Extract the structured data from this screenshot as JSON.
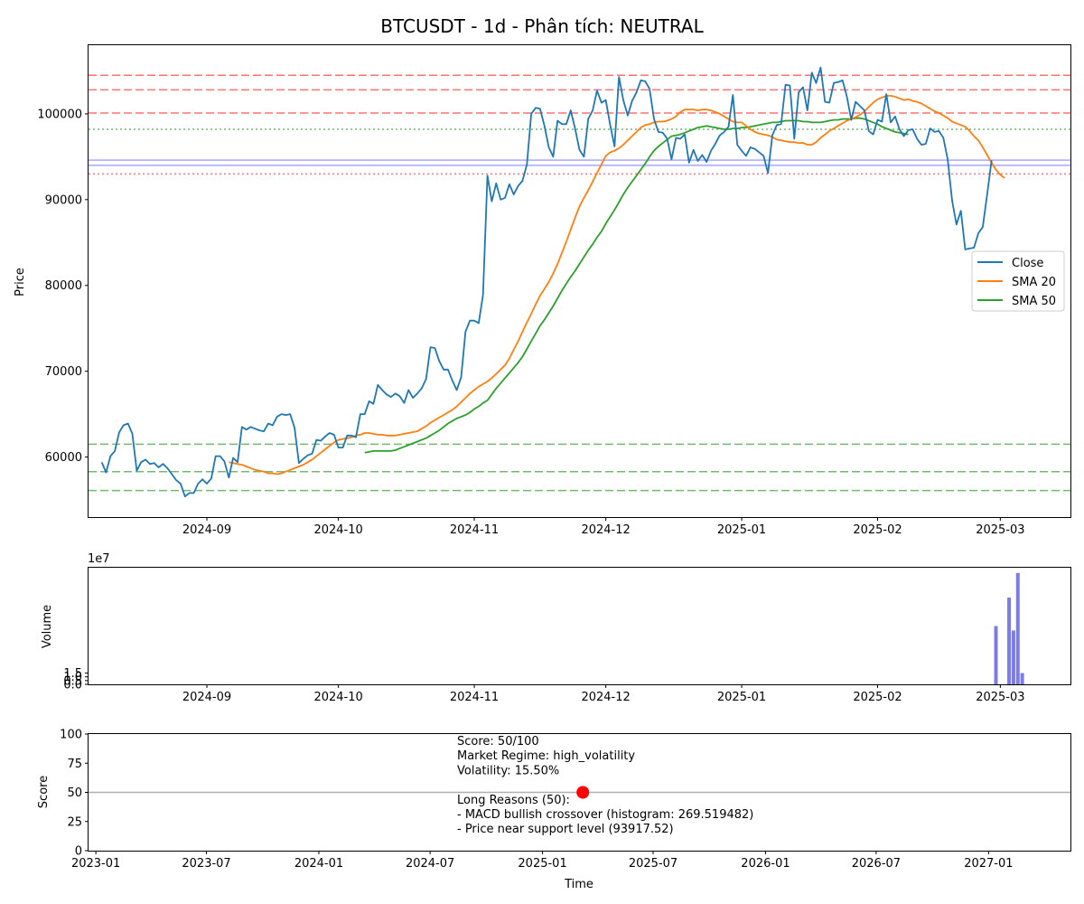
{
  "chart_data": [
    {
      "type": "line",
      "title": "BTCUSDT - 1d - Phân tích: NEUTRAL",
      "xlabel": "",
      "ylabel": "Price",
      "ylim": [
        53000,
        108000
      ],
      "x_range": [
        "2024-08-05",
        "2025-03-17"
      ],
      "x_ticks": [
        "2024-09",
        "2024-10",
        "2024-11",
        "2024-12",
        "2025-01",
        "2025-02",
        "2025-03"
      ],
      "y_ticks": [
        60000,
        70000,
        80000,
        90000,
        100000
      ],
      "y_tick_labels": [
        "60000",
        "70000",
        "80000",
        "90000",
        "100000"
      ],
      "legend": {
        "placement": "center-right",
        "entries": [
          "Close",
          "SMA 20",
          "SMA 50"
        ]
      },
      "colors": {
        "close": "#1f77b4",
        "sma20": "#ff7f0e",
        "sma50": "#2ca02c"
      },
      "series": [
        {
          "name": "Close",
          "start_date": "2024-08-08",
          "values": [
            59400,
            58200,
            60100,
            60700,
            62900,
            63700,
            63900,
            62700,
            58400,
            59400,
            59700,
            59200,
            59300,
            58800,
            59200,
            58700,
            58000,
            57300,
            56900,
            55400,
            55800,
            55800,
            56900,
            57400,
            56900,
            57500,
            60100,
            60100,
            59500,
            57600,
            59900,
            59400,
            63500,
            63200,
            63500,
            63300,
            63100,
            63000,
            63900,
            63700,
            64700,
            65000,
            64900,
            65000,
            63400,
            59300,
            59800,
            60200,
            60400,
            62000,
            61900,
            62400,
            62800,
            62600,
            61100,
            61100,
            62500,
            62500,
            62300,
            65000,
            65000,
            66500,
            66200,
            68400,
            67800,
            67300,
            67000,
            67400,
            67100,
            66300,
            67800,
            66900,
            67400,
            68000,
            69100,
            72800,
            72700,
            71200,
            70200,
            70200,
            68900,
            67800,
            69300,
            74600,
            75900,
            75900,
            75600,
            78900,
            92800,
            89800,
            91900,
            90000,
            90200,
            91800,
            90600,
            91600,
            92200,
            94100,
            100000,
            100700,
            100600,
            98600,
            96100,
            95000,
            99200,
            98800,
            98800,
            100400,
            98300,
            95800,
            95000,
            99400,
            100400,
            102700,
            101300,
            101600,
            98700,
            96200,
            104300,
            101600,
            99800,
            101500,
            102500,
            103900,
            103800,
            102900,
            99400,
            97900,
            97800,
            97100,
            94700,
            97200,
            97100,
            97600,
            94300,
            95800,
            94500,
            95200,
            94400,
            95700,
            96500,
            97500,
            97900,
            98500,
            102200,
            96400,
            95700,
            95100,
            96100,
            95900,
            95500,
            95100,
            93100,
            97500,
            98700,
            98800,
            103400,
            103300,
            97100,
            102500,
            103100,
            100400,
            104800,
            103600,
            105400,
            101400,
            101300,
            103600,
            103700,
            103900,
            102000,
            99300,
            101400,
            100900,
            100400,
            98000,
            97600,
            99300,
            99100,
            102300,
            99000,
            99700,
            98200,
            97400,
            98100,
            98200,
            97100,
            96400,
            96500,
            98300,
            97900,
            98000,
            97200,
            94700,
            89900,
            87100,
            88700,
            84200,
            84300,
            84400,
            86100,
            86800,
            90600,
            94600
          ]
        },
        {
          "name": "SMA 20",
          "start_date": "2024-09-06",
          "values": [
            59400,
            59300,
            59200,
            59100,
            58900,
            58700,
            58500,
            58400,
            58300,
            58100,
            58100,
            58000,
            58100,
            58300,
            58500,
            58700,
            58900,
            59100,
            59400,
            59700,
            60100,
            60500,
            60900,
            61300,
            61700,
            62000,
            62100,
            62200,
            62300,
            62500,
            62600,
            62800,
            62800,
            62700,
            62600,
            62600,
            62500,
            62500,
            62500,
            62600,
            62700,
            62800,
            62900,
            63000,
            63300,
            63600,
            64000,
            64300,
            64600,
            64900,
            65200,
            65500,
            65900,
            66400,
            66900,
            67400,
            67800,
            68200,
            68500,
            68800,
            69200,
            69700,
            70200,
            70700,
            71500,
            72500,
            73500,
            74600,
            75700,
            76700,
            77800,
            78800,
            79600,
            80400,
            81400,
            82500,
            83800,
            85100,
            86500,
            87900,
            89200,
            90200,
            91100,
            92100,
            93100,
            94100,
            95100,
            95500,
            95700,
            96000,
            96400,
            96900,
            97400,
            97900,
            98400,
            98700,
            98800,
            99000,
            99100,
            99100,
            99200,
            99400,
            99700,
            100200,
            100500,
            100500,
            100500,
            100400,
            100500,
            100500,
            100400,
            100200,
            100000,
            99700,
            99400,
            99100,
            99000,
            99000,
            98600,
            98200,
            97900,
            97700,
            97600,
            97500,
            97300,
            97000,
            96900,
            96800,
            96700,
            96700,
            96600,
            96600,
            96400,
            96400,
            96700,
            97200,
            97600,
            98000,
            98300,
            98600,
            98900,
            99200,
            99400,
            99600,
            99900,
            100300,
            100800,
            101300,
            101700,
            101900,
            102100,
            102100,
            102000,
            101800,
            101600,
            101700,
            101500,
            101400,
            101200,
            100900,
            100600,
            100300,
            100100,
            99800,
            99500,
            99100,
            98900,
            98700,
            98500,
            98000,
            97400,
            96900,
            96100,
            95200,
            94300,
            93500,
            92900,
            92500
          ]
        },
        {
          "name": "SMA 50",
          "start_date": "2024-10-07",
          "values": [
            60500,
            60600,
            60700,
            60700,
            60700,
            60700,
            60700,
            60800,
            61000,
            61200,
            61400,
            61600,
            61800,
            62000,
            62200,
            62500,
            62800,
            63100,
            63500,
            63900,
            64200,
            64500,
            64700,
            64900,
            65200,
            65600,
            65900,
            66300,
            66600,
            67300,
            68000,
            68600,
            69200,
            69800,
            70400,
            71000,
            71700,
            72600,
            73500,
            74400,
            75300,
            76000,
            76800,
            77600,
            78500,
            79400,
            80200,
            81000,
            81700,
            82500,
            83300,
            84100,
            84800,
            85600,
            86300,
            87200,
            88000,
            88800,
            89700,
            90600,
            91400,
            92100,
            92800,
            93500,
            94200,
            95000,
            95700,
            96200,
            96600,
            97000,
            97400,
            97500,
            97600,
            97800,
            98000,
            98200,
            98400,
            98500,
            98600,
            98500,
            98400,
            98300,
            98200,
            98200,
            98300,
            98300,
            98400,
            98400,
            98500,
            98600,
            98700,
            98800,
            98900,
            99000,
            99000,
            99100,
            99200,
            99200,
            99200,
            99200,
            99100,
            99100,
            99000,
            99000,
            99000,
            99100,
            99200,
            99300,
            99300,
            99400,
            99400,
            99400,
            99500,
            99500,
            99400,
            99200,
            99000,
            98800,
            98500,
            98300,
            98100,
            97900,
            97800,
            97700,
            97600
          ]
        }
      ],
      "hlines": [
        {
          "y": 104500,
          "color": "#ff0000",
          "style": "dashed"
        },
        {
          "y": 102800,
          "color": "#ff0000",
          "style": "dashed"
        },
        {
          "y": 100100,
          "color": "#ff0000",
          "style": "dashed"
        },
        {
          "y": 98200,
          "color": "#008000",
          "style": "dotted"
        },
        {
          "y": 94600,
          "color": "#0000ff",
          "style": "solid"
        },
        {
          "y": 94000,
          "color": "#0000ff",
          "style": "solid"
        },
        {
          "y": 93000,
          "color": "#ff0000",
          "style": "dotted"
        },
        {
          "y": 61500,
          "color": "#008000",
          "style": "dashed"
        },
        {
          "y": 58300,
          "color": "#008000",
          "style": "dashed"
        },
        {
          "y": 56100,
          "color": "#008000",
          "style": "dashed"
        }
      ],
      "grid": false
    },
    {
      "type": "bar",
      "title": "",
      "xlabel": "",
      "ylabel": "Volume",
      "ylim": [
        0,
        15.6
      ],
      "offset_label": "1e7",
      "x_range": [
        "2024-08-05",
        "2025-03-17"
      ],
      "x_ticks": [
        "2024-09",
        "2024-10",
        "2024-11",
        "2024-12",
        "2025-01",
        "2025-02",
        "2025-03"
      ],
      "y_ticks": [
        0.0,
        0.5,
        1.0,
        1.5
      ],
      "y_tick_labels": [
        "0.0",
        "0.5",
        "1.0",
        "1.5"
      ],
      "bar_color": "#7b7bea",
      "dates": [
        "2025-02-28",
        "2025-03-03",
        "2025-03-04",
        "2025-03-05",
        "2025-03-06"
      ],
      "values": [
        7.8,
        11.6,
        7.2,
        14.9,
        1.5
      ],
      "grid": false
    },
    {
      "type": "scatter",
      "title": "",
      "xlabel": "Time",
      "ylabel": "Score",
      "ylim": [
        0,
        100
      ],
      "x_range": [
        "2022-12-20",
        "2027-05-15"
      ],
      "x_ticks": [
        "2023-01",
        "2023-07",
        "2024-01",
        "2024-07",
        "2025-01",
        "2025-07",
        "2026-01",
        "2026-07",
        "2027-01"
      ],
      "y_ticks": [
        0,
        25,
        50,
        75,
        100
      ],
      "y_tick_labels": [
        "0",
        "25",
        "50",
        "75",
        "100"
      ],
      "points": [
        {
          "x": "2025-03-08",
          "y": 50,
          "color": "#ff0000"
        }
      ],
      "hline": {
        "y": 50,
        "color": "#b0b0b0"
      },
      "annotation_lines": [
        "Score: 50/100",
        "Market Regime: high_volatility",
        "Volatility: 15.50%",
        "",
        "Long Reasons (50):",
        "- MACD bullish crossover (histogram: 269.519482)",
        "- Price near support level (93917.52)"
      ],
      "grid": false
    }
  ]
}
